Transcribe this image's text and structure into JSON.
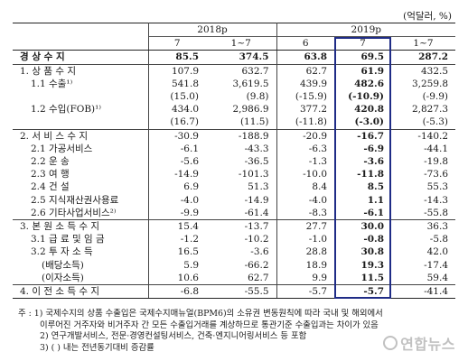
{
  "unit": "(억달러, %)",
  "years": [
    "2018p",
    "2019p"
  ],
  "months": [
    "7",
    "1~7",
    "6",
    "7",
    "1~7"
  ],
  "rows": [
    {
      "label": "경 상 수 지",
      "indent": 0,
      "bold": true,
      "values": [
        "85.5",
        "374.5",
        "63.8",
        "69.5",
        "287.2"
      ],
      "topline": true
    },
    {
      "label": "1. 상 품 수 지",
      "indent": 0,
      "bold": false,
      "values": [
        "107.9",
        "632.7",
        "62.7",
        "61.9",
        "432.5"
      ],
      "topline": true
    },
    {
      "label": "1.1 수출¹⁾",
      "indent": 1,
      "bold": false,
      "values": [
        "541.8",
        "3,619.5",
        "439.9",
        "482.6",
        "3,259.8"
      ]
    },
    {
      "label": "",
      "indent": 1,
      "bold": false,
      "values": [
        "(15.0)",
        "(9.8)",
        "(-15.9)",
        "(-10.9)",
        "(-9.9)"
      ]
    },
    {
      "label": "1.2 수입(FOB)¹⁾",
      "indent": 1,
      "bold": false,
      "values": [
        "434.0",
        "2,986.9",
        "377.2",
        "420.8",
        "2,827.3"
      ]
    },
    {
      "label": "",
      "indent": 1,
      "bold": false,
      "values": [
        "(16.7)",
        "(11.5)",
        "(-11.8)",
        "(-3.0)",
        "(-5.3)"
      ]
    },
    {
      "label": "2. 서 비 스 수 지",
      "indent": 0,
      "bold": false,
      "values": [
        "-30.9",
        "-188.9",
        "-20.9",
        "-16.7",
        "-140.2"
      ],
      "topline": true
    },
    {
      "label": "2.1 가공서비스",
      "indent": 1,
      "bold": false,
      "values": [
        "-6.1",
        "-43.3",
        "-6.3",
        "-6.9",
        "-44.1"
      ]
    },
    {
      "label": "2.2 운 송",
      "indent": 1,
      "bold": false,
      "values": [
        "-5.6",
        "-36.5",
        "-1.3",
        "-3.6",
        "-19.8"
      ]
    },
    {
      "label": "2.3 여 행",
      "indent": 1,
      "bold": false,
      "values": [
        "-14.9",
        "-101.3",
        "-10.0",
        "-11.8",
        "-73.6"
      ]
    },
    {
      "label": "2.4 건 설",
      "indent": 1,
      "bold": false,
      "values": [
        "6.9",
        "51.3",
        "8.4",
        "8.5",
        "55.3"
      ]
    },
    {
      "label": "2.5 지식재산권사용료",
      "indent": 1,
      "bold": false,
      "values": [
        "-4.0",
        "-14.9",
        "-4.0",
        "1.1",
        "-14.3"
      ]
    },
    {
      "label": "2.6 기타사업서비스²⁾",
      "indent": 1,
      "bold": false,
      "values": [
        "-9.9",
        "-61.4",
        "-8.3",
        "-6.1",
        "-55.8"
      ]
    },
    {
      "label": "3. 본 원 소 득 수 지",
      "indent": 0,
      "bold": false,
      "values": [
        "15.4",
        "-13.7",
        "27.7",
        "30.0",
        "36.3"
      ],
      "topline": true
    },
    {
      "label": "3.1 급 료 및 임 금",
      "indent": 1,
      "bold": false,
      "values": [
        "-1.2",
        "-10.2",
        "-1.0",
        "-0.8",
        "-5.8"
      ]
    },
    {
      "label": "3.2 투 자 소 득",
      "indent": 1,
      "bold": false,
      "values": [
        "16.5",
        "-3.6",
        "28.8",
        "30.8",
        "42.0"
      ]
    },
    {
      "label": "(배당소득)",
      "indent": 2,
      "bold": false,
      "values": [
        "5.9",
        "-66.2",
        "18.9",
        "19.3",
        "-17.4"
      ]
    },
    {
      "label": "(이자소득)",
      "indent": 2,
      "bold": false,
      "values": [
        "10.6",
        "62.7",
        "9.9",
        "11.5",
        "59.4"
      ]
    },
    {
      "label": "4. 이 전 소 득 수 지",
      "indent": 0,
      "bold": false,
      "values": [
        "-6.8",
        "-55.5",
        "-5.7",
        "-5.7",
        "-41.4"
      ],
      "topline": true,
      "bottom": true
    }
  ],
  "notes": [
    "주 : 1) 국제수지의 상품 수출입은 국제수지매뉴얼(BPM6)의 소유권 변동원칙에 따라 국내 및 해외에서",
    "이루어진 거주자와 비거주자 간 모든 수출입거래를 계상하므로 통관기준 수출입과는 차이가 있음",
    "2) 연구개발서비스, 전문·경영컨설팅서비스, 건축·엔지니어링서비스 등 포함",
    "3) ( ) 내는 전년동기대비 증감률"
  ],
  "watermark": "연합뉴스",
  "highlight_color": "#1f2c86"
}
